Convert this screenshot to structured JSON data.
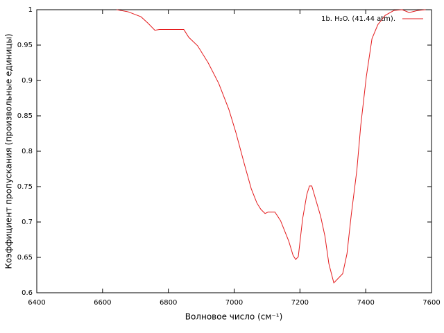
{
  "chart_data": {
    "type": "line",
    "xlabel": "Волновое число (см⁻¹)",
    "ylabel": "Коэффициент пропускания (произвольные единицы)",
    "x": [
      6643,
      6678,
      6717,
      6738,
      6759,
      6773,
      6847,
      6862,
      6889,
      6921,
      6953,
      6984,
      7005,
      7031,
      7052,
      7069,
      7081,
      7094,
      7103,
      7124,
      7141,
      7166,
      7179,
      7187,
      7195,
      7208,
      7221,
      7229,
      7236,
      7263,
      7276,
      7288,
      7303,
      7330,
      7343,
      7356,
      7373,
      7385,
      7402,
      7419,
      7437,
      7459,
      7486,
      7511,
      7532,
      7559,
      7582
    ],
    "series": [
      {
        "name": "1b. H₂O. (41.44 atm).",
        "color": "#e41a1c",
        "values": [
          1.0,
          0.997,
          0.99,
          0.981,
          0.971,
          0.972,
          0.972,
          0.961,
          0.949,
          0.925,
          0.896,
          0.859,
          0.827,
          0.782,
          0.747,
          0.727,
          0.718,
          0.712,
          0.714,
          0.714,
          0.702,
          0.673,
          0.653,
          0.647,
          0.651,
          0.704,
          0.739,
          0.751,
          0.751,
          0.708,
          0.68,
          0.641,
          0.614,
          0.627,
          0.655,
          0.71,
          0.773,
          0.837,
          0.906,
          0.959,
          0.979,
          0.992,
          0.999,
          1.0,
          0.996,
          0.999,
          1.0
        ]
      }
    ],
    "xlim": [
      6400,
      7600
    ],
    "xticks": [
      6400,
      6600,
      6800,
      7000,
      7200,
      7400,
      7600
    ],
    "ylim": [
      0.6,
      1
    ],
    "yticks": [
      0.6,
      0.65,
      0.7,
      0.75,
      0.8,
      0.85,
      0.9,
      0.95,
      1
    ],
    "legend": "upper right"
  }
}
